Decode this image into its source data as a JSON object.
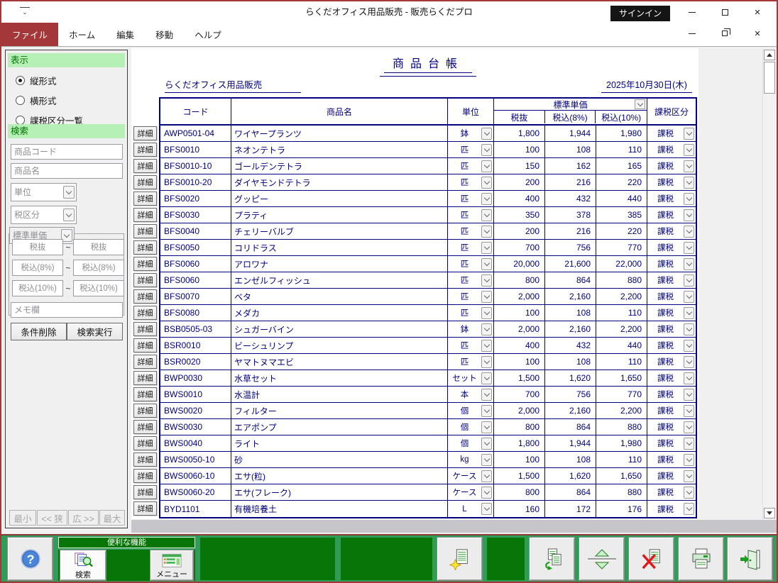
{
  "colors": {
    "accent_red": "#a4373a",
    "table_navy": "#000080",
    "toolbar_green": "#2f9c58",
    "panel_dark_green": "#077507",
    "sidebar_header_bg": "#b7f0b7",
    "sidebar_header_text": "#007400",
    "signin_bg": "#151515"
  },
  "window": {
    "title": "らくだオフィス用品販売  -  販売らくだプロ",
    "signin_label": "サインイン"
  },
  "menubar": {
    "items": [
      {
        "label": "ファイル",
        "active": true
      },
      {
        "label": "ホーム",
        "active": false
      },
      {
        "label": "編集",
        "active": false
      },
      {
        "label": "移動",
        "active": false
      },
      {
        "label": "ヘルプ",
        "active": false
      }
    ]
  },
  "sidebar": {
    "display_section": {
      "title": "表示",
      "options": [
        {
          "label": "縦形式",
          "selected": true
        },
        {
          "label": "横形式",
          "selected": false
        },
        {
          "label": "課税区分一覧",
          "selected": false
        }
      ]
    },
    "search_section": {
      "title": "検索",
      "product_code_placeholder": "商品コード",
      "product_name_placeholder": "商品名",
      "unit_placeholder": "単位",
      "tax_class_placeholder": "税区分",
      "price_type_placeholder": "標準単価",
      "range_separator": "~",
      "range_rows": [
        {
          "from": "税抜",
          "to": "税抜"
        },
        {
          "from": "税込(8%)",
          "to": "税込(8%)"
        },
        {
          "from": "税込(10%)",
          "to": "税込(10%)"
        }
      ],
      "memo_placeholder": "メモ欄",
      "clear_button": "条件削除",
      "execute_button": "検索実行"
    },
    "width_buttons": [
      "最小",
      "<< 狭",
      "広 >>",
      "最大"
    ]
  },
  "report": {
    "title": "商品台帳",
    "company": "らくだオフィス用品販売",
    "date": "2025年10月30日(木)",
    "detail_button_label": "詳細"
  },
  "table": {
    "headers": {
      "code": "コード",
      "name": "商品名",
      "unit": "単位",
      "price_group": "標準単価",
      "price_ex": "税抜",
      "price_inc8": "税込(8%)",
      "price_inc10": "税込(10%)",
      "tax_class": "課税区分"
    },
    "rows": [
      {
        "code": "AWP0501-04",
        "name": "ワイヤープランツ",
        "unit": "鉢",
        "ex": "1,800",
        "inc8": "1,944",
        "inc10": "1,980",
        "tax": "課税"
      },
      {
        "code": "BFS0010",
        "name": "ネオンテトラ",
        "unit": "匹",
        "ex": "100",
        "inc8": "108",
        "inc10": "110",
        "tax": "課税"
      },
      {
        "code": "BFS0010-10",
        "name": "ゴールデンテトラ",
        "unit": "匹",
        "ex": "150",
        "inc8": "162",
        "inc10": "165",
        "tax": "課税"
      },
      {
        "code": "BFS0010-20",
        "name": "ダイヤモンドテトラ",
        "unit": "匹",
        "ex": "200",
        "inc8": "216",
        "inc10": "220",
        "tax": "課税"
      },
      {
        "code": "BFS0020",
        "name": "グッピー",
        "unit": "匹",
        "ex": "400",
        "inc8": "432",
        "inc10": "440",
        "tax": "課税"
      },
      {
        "code": "BFS0030",
        "name": "プラティ",
        "unit": "匹",
        "ex": "350",
        "inc8": "378",
        "inc10": "385",
        "tax": "課税"
      },
      {
        "code": "BFS0040",
        "name": "チェリーバルブ",
        "unit": "匹",
        "ex": "200",
        "inc8": "216",
        "inc10": "220",
        "tax": "課税"
      },
      {
        "code": "BFS0050",
        "name": "コリドラス",
        "unit": "匹",
        "ex": "700",
        "inc8": "756",
        "inc10": "770",
        "tax": "課税"
      },
      {
        "code": "BFS0060",
        "name": "アロワナ",
        "unit": "匹",
        "ex": "20,000",
        "inc8": "21,600",
        "inc10": "22,000",
        "tax": "課税"
      },
      {
        "code": "BFS0060",
        "name": "エンゼルフィッシュ",
        "unit": "匹",
        "ex": "800",
        "inc8": "864",
        "inc10": "880",
        "tax": "課税"
      },
      {
        "code": "BFS0070",
        "name": "ベタ",
        "unit": "匹",
        "ex": "2,000",
        "inc8": "2,160",
        "inc10": "2,200",
        "tax": "課税"
      },
      {
        "code": "BFS0080",
        "name": "メダカ",
        "unit": "匹",
        "ex": "100",
        "inc8": "108",
        "inc10": "110",
        "tax": "課税"
      },
      {
        "code": "BSB0505-03",
        "name": "シュガーバイン",
        "unit": "鉢",
        "ex": "2,000",
        "inc8": "2,160",
        "inc10": "2,200",
        "tax": "課税"
      },
      {
        "code": "BSR0010",
        "name": "ビーシュリンプ",
        "unit": "匹",
        "ex": "400",
        "inc8": "432",
        "inc10": "440",
        "tax": "課税"
      },
      {
        "code": "BSR0020",
        "name": "ヤマトヌマエビ",
        "unit": "匹",
        "ex": "100",
        "inc8": "108",
        "inc10": "110",
        "tax": "課税"
      },
      {
        "code": "BWP0030",
        "name": "水草セット",
        "unit": "セット",
        "ex": "1,500",
        "inc8": "1,620",
        "inc10": "1,650",
        "tax": "課税"
      },
      {
        "code": "BWS0010",
        "name": "水温計",
        "unit": "本",
        "ex": "700",
        "inc8": "756",
        "inc10": "770",
        "tax": "課税"
      },
      {
        "code": "BWS0020",
        "name": "フィルター",
        "unit": "個",
        "ex": "2,000",
        "inc8": "2,160",
        "inc10": "2,200",
        "tax": "課税"
      },
      {
        "code": "BWS0030",
        "name": "エアポンプ",
        "unit": "個",
        "ex": "800",
        "inc8": "864",
        "inc10": "880",
        "tax": "課税"
      },
      {
        "code": "BWS0040",
        "name": "ライト",
        "unit": "個",
        "ex": "1,800",
        "inc8": "1,944",
        "inc10": "1,980",
        "tax": "課税"
      },
      {
        "code": "BWS0050-10",
        "name": "砂",
        "unit": "kg",
        "ex": "100",
        "inc8": "108",
        "inc10": "110",
        "tax": "課税"
      },
      {
        "code": "BWS0060-10",
        "name": "エサ(粒)",
        "unit": "ケース",
        "ex": "1,500",
        "inc8": "1,620",
        "inc10": "1,650",
        "tax": "課税"
      },
      {
        "code": "BWS0060-20",
        "name": "エサ(フレーク)",
        "unit": "ケース",
        "ex": "800",
        "inc8": "864",
        "inc10": "880",
        "tax": "課税"
      },
      {
        "code": "BYD1101",
        "name": "有機培養土",
        "unit": "L",
        "ex": "160",
        "inc8": "172",
        "inc10": "176",
        "tax": "課税"
      }
    ]
  },
  "toolbar": {
    "help": {
      "label": "ヘルプ"
    },
    "utilities": {
      "label": "便利な機能",
      "search_label": "検索",
      "menu_label": "メニュー"
    },
    "new": {
      "label": "新規"
    },
    "dup_row": {
      "label": "行複製"
    },
    "swap_row": {
      "label": "行入換"
    },
    "del_row": {
      "label": "行削除"
    },
    "print": {
      "label": "印刷"
    },
    "close": {
      "label": "閉じる"
    }
  }
}
